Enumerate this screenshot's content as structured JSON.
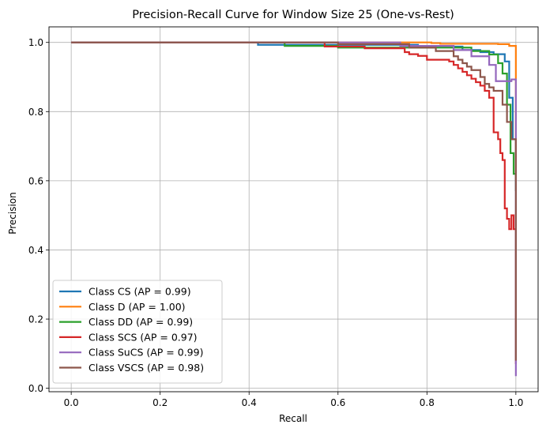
{
  "chart_data": {
    "type": "line",
    "title": "Precision-Recall Curve for Window Size 25 (One-vs-Rest)",
    "xlabel": "Recall",
    "ylabel": "Precision",
    "xlim": [
      -0.05,
      1.05
    ],
    "ylim": [
      -0.01,
      1.045
    ],
    "xticks": [
      0.0,
      0.2,
      0.4,
      0.6,
      0.8,
      1.0
    ],
    "yticks": [
      0.0,
      0.2,
      0.4,
      0.6,
      0.8,
      1.0
    ],
    "xtick_labels": [
      "0.0",
      "0.2",
      "0.4",
      "0.6",
      "0.8",
      "1.0"
    ],
    "ytick_labels": [
      "0.0",
      "0.2",
      "0.4",
      "0.6",
      "0.8",
      "1.0"
    ],
    "grid": true,
    "legend_position": "lower-left",
    "series": [
      {
        "name": "Class CS (AP = 0.99)",
        "color": "#1f77b4",
        "x": [
          0.0,
          0.42,
          0.42,
          0.78,
          0.78,
          0.88,
          0.88,
          0.92,
          0.92,
          0.95,
          0.95,
          0.975,
          0.975,
          0.985,
          0.985,
          0.993,
          0.993,
          1.0,
          1.0
        ],
        "y": [
          1.0,
          1.0,
          0.993,
          0.993,
          0.988,
          0.988,
          0.978,
          0.978,
          0.972,
          0.972,
          0.966,
          0.966,
          0.945,
          0.945,
          0.84,
          0.84,
          0.72,
          0.72,
          0.57
        ]
      },
      {
        "name": "Class D (AP = 1.00)",
        "color": "#ff7f0e",
        "x": [
          0.0,
          0.81,
          0.81,
          0.83,
          0.83,
          0.96,
          0.96,
          0.985,
          0.985,
          1.0,
          1.0
        ],
        "y": [
          1.0,
          1.0,
          0.998,
          0.998,
          0.996,
          0.996,
          0.995,
          0.995,
          0.99,
          0.99,
          0.6
        ]
      },
      {
        "name": "Class DD (AP = 0.99)",
        "color": "#2ca02c",
        "x": [
          0.0,
          0.48,
          0.48,
          0.6,
          0.6,
          0.9,
          0.9,
          0.94,
          0.94,
          0.96,
          0.96,
          0.97,
          0.97,
          0.98,
          0.98,
          0.988,
          0.988,
          0.995,
          0.995,
          1.0,
          1.0
        ],
        "y": [
          1.0,
          1.0,
          0.99,
          0.99,
          0.985,
          0.985,
          0.975,
          0.975,
          0.965,
          0.965,
          0.94,
          0.94,
          0.91,
          0.91,
          0.82,
          0.82,
          0.68,
          0.68,
          0.62,
          0.62,
          0.57
        ]
      },
      {
        "name": "Class SCS (AP = 0.97)",
        "color": "#d62728",
        "x": [
          0.0,
          0.57,
          0.57,
          0.66,
          0.66,
          0.75,
          0.75,
          0.76,
          0.76,
          0.78,
          0.78,
          0.8,
          0.8,
          0.85,
          0.85,
          0.86,
          0.86,
          0.87,
          0.87,
          0.88,
          0.88,
          0.89,
          0.89,
          0.9,
          0.9,
          0.91,
          0.91,
          0.92,
          0.92,
          0.93,
          0.93,
          0.94,
          0.94,
          0.95,
          0.95,
          0.96,
          0.96,
          0.965,
          0.965,
          0.97,
          0.97,
          0.975,
          0.975,
          0.98,
          0.98,
          0.985,
          0.985,
          0.99,
          0.99,
          0.995,
          0.995,
          1.0,
          1.0
        ],
        "y": [
          1.0,
          1.0,
          0.988,
          0.988,
          0.983,
          0.983,
          0.972,
          0.972,
          0.966,
          0.966,
          0.961,
          0.961,
          0.95,
          0.95,
          0.945,
          0.945,
          0.935,
          0.935,
          0.925,
          0.925,
          0.915,
          0.915,
          0.905,
          0.905,
          0.895,
          0.895,
          0.885,
          0.885,
          0.875,
          0.875,
          0.86,
          0.86,
          0.84,
          0.84,
          0.74,
          0.74,
          0.72,
          0.72,
          0.68,
          0.68,
          0.66,
          0.66,
          0.52,
          0.52,
          0.49,
          0.49,
          0.46,
          0.46,
          0.5,
          0.5,
          0.46,
          0.46,
          0.07
        ]
      },
      {
        "name": "Class SuCS (AP = 0.99)",
        "color": "#9467bd",
        "x": [
          0.0,
          0.74,
          0.74,
          0.86,
          0.86,
          0.9,
          0.9,
          0.94,
          0.94,
          0.955,
          0.955,
          0.99,
          0.99,
          1.0,
          1.0
        ],
        "y": [
          1.0,
          1.0,
          0.99,
          0.99,
          0.978,
          0.978,
          0.96,
          0.96,
          0.935,
          0.935,
          0.888,
          0.888,
          0.893,
          0.893,
          0.035
        ]
      },
      {
        "name": "Class VSCS (AP = 0.98)",
        "color": "#8c564b",
        "x": [
          0.0,
          0.6,
          0.6,
          0.76,
          0.76,
          0.82,
          0.82,
          0.86,
          0.86,
          0.87,
          0.87,
          0.88,
          0.88,
          0.89,
          0.89,
          0.9,
          0.9,
          0.92,
          0.92,
          0.93,
          0.93,
          0.94,
          0.94,
          0.95,
          0.95,
          0.97,
          0.97,
          0.98,
          0.98,
          0.99,
          0.99,
          1.0,
          1.0
        ],
        "y": [
          1.0,
          1.0,
          0.995,
          0.995,
          0.985,
          0.985,
          0.975,
          0.975,
          0.96,
          0.96,
          0.95,
          0.95,
          0.94,
          0.94,
          0.93,
          0.93,
          0.92,
          0.92,
          0.9,
          0.9,
          0.88,
          0.88,
          0.87,
          0.87,
          0.86,
          0.86,
          0.82,
          0.82,
          0.77,
          0.77,
          0.72,
          0.72,
          0.08
        ]
      }
    ]
  }
}
